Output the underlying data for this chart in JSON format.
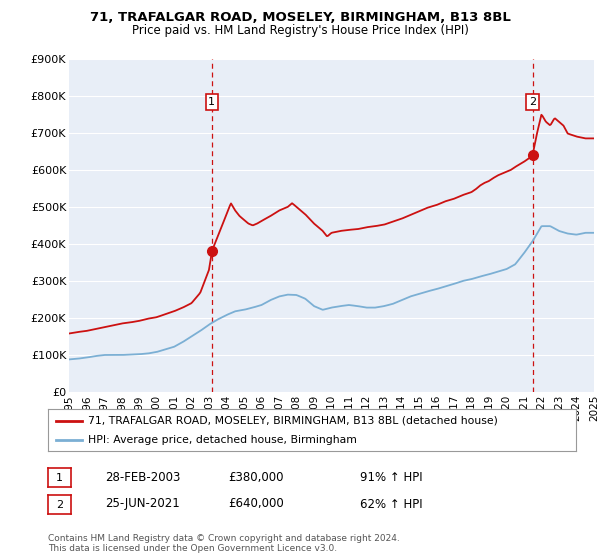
{
  "title": "71, TRAFALGAR ROAD, MOSELEY, BIRMINGHAM, B13 8BL",
  "subtitle": "Price paid vs. HM Land Registry's House Price Index (HPI)",
  "hpi_label": "HPI: Average price, detached house, Birmingham",
  "property_label": "71, TRAFALGAR ROAD, MOSELEY, BIRMINGHAM, B13 8BL (detached house)",
  "annotation1": {
    "number": "1",
    "date": "28-FEB-2003",
    "price": "£380,000",
    "hpi": "91% ↑ HPI",
    "x_year": 2003.16,
    "y_price": 380000
  },
  "annotation2": {
    "number": "2",
    "date": "25-JUN-2021",
    "price": "£640,000",
    "hpi": "62% ↑ HPI",
    "x_year": 2021.49,
    "y_price": 640000
  },
  "ymin": 0,
  "ymax": 900000,
  "yticks": [
    0,
    100000,
    200000,
    300000,
    400000,
    500000,
    600000,
    700000,
    800000,
    900000
  ],
  "ytick_labels": [
    "£0",
    "£100K",
    "£200K",
    "£300K",
    "£400K",
    "£500K",
    "£600K",
    "£700K",
    "£800K",
    "£900K"
  ],
  "xmin": 1995,
  "xmax": 2025,
  "background_color": "#ffffff",
  "plot_bg_color": "#e8eef7",
  "grid_color": "#ffffff",
  "hpi_color": "#7bafd4",
  "property_color": "#cc1111",
  "dashed_color": "#cc1111",
  "footer": "Contains HM Land Registry data © Crown copyright and database right 2024.\nThis data is licensed under the Open Government Licence v3.0.",
  "hpi_points": [
    [
      1995.0,
      88000
    ],
    [
      1995.5,
      90000
    ],
    [
      1996.0,
      93000
    ],
    [
      1996.5,
      97000
    ],
    [
      1997.0,
      100000
    ],
    [
      1997.5,
      100000
    ],
    [
      1998.0,
      100000
    ],
    [
      1998.5,
      101000
    ],
    [
      1999.0,
      102000
    ],
    [
      1999.5,
      104000
    ],
    [
      2000.0,
      108000
    ],
    [
      2000.5,
      115000
    ],
    [
      2001.0,
      122000
    ],
    [
      2001.5,
      135000
    ],
    [
      2002.0,
      150000
    ],
    [
      2002.5,
      165000
    ],
    [
      2003.0,
      182000
    ],
    [
      2003.5,
      196000
    ],
    [
      2004.0,
      208000
    ],
    [
      2004.5,
      218000
    ],
    [
      2005.0,
      222000
    ],
    [
      2005.5,
      228000
    ],
    [
      2006.0,
      235000
    ],
    [
      2006.5,
      248000
    ],
    [
      2007.0,
      258000
    ],
    [
      2007.5,
      263000
    ],
    [
      2008.0,
      262000
    ],
    [
      2008.5,
      252000
    ],
    [
      2009.0,
      232000
    ],
    [
      2009.5,
      222000
    ],
    [
      2010.0,
      228000
    ],
    [
      2010.5,
      232000
    ],
    [
      2011.0,
      235000
    ],
    [
      2011.5,
      232000
    ],
    [
      2012.0,
      228000
    ],
    [
      2012.5,
      228000
    ],
    [
      2013.0,
      232000
    ],
    [
      2013.5,
      238000
    ],
    [
      2014.0,
      248000
    ],
    [
      2014.5,
      258000
    ],
    [
      2015.0,
      265000
    ],
    [
      2015.5,
      272000
    ],
    [
      2016.0,
      278000
    ],
    [
      2016.5,
      285000
    ],
    [
      2017.0,
      292000
    ],
    [
      2017.5,
      300000
    ],
    [
      2018.0,
      305000
    ],
    [
      2018.5,
      312000
    ],
    [
      2019.0,
      318000
    ],
    [
      2019.5,
      325000
    ],
    [
      2020.0,
      332000
    ],
    [
      2020.5,
      345000
    ],
    [
      2021.0,
      375000
    ],
    [
      2021.5,
      408000
    ],
    [
      2022.0,
      448000
    ],
    [
      2022.5,
      448000
    ],
    [
      2023.0,
      435000
    ],
    [
      2023.5,
      428000
    ],
    [
      2024.0,
      425000
    ],
    [
      2024.5,
      430000
    ],
    [
      2025.0,
      430000
    ]
  ],
  "prop_points": [
    [
      1995.0,
      158000
    ],
    [
      1995.5,
      162000
    ],
    [
      1996.0,
      165000
    ],
    [
      1996.5,
      170000
    ],
    [
      1997.0,
      175000
    ],
    [
      1997.5,
      180000
    ],
    [
      1998.0,
      185000
    ],
    [
      1998.5,
      188000
    ],
    [
      1999.0,
      192000
    ],
    [
      1999.5,
      198000
    ],
    [
      2000.0,
      202000
    ],
    [
      2000.5,
      210000
    ],
    [
      2001.0,
      218000
    ],
    [
      2001.5,
      228000
    ],
    [
      2002.0,
      240000
    ],
    [
      2002.5,
      268000
    ],
    [
      2003.0,
      330000
    ],
    [
      2003.16,
      380000
    ],
    [
      2003.5,
      420000
    ],
    [
      2003.75,
      450000
    ],
    [
      2004.0,
      480000
    ],
    [
      2004.25,
      510000
    ],
    [
      2004.5,
      490000
    ],
    [
      2004.75,
      475000
    ],
    [
      2005.0,
      465000
    ],
    [
      2005.25,
      455000
    ],
    [
      2005.5,
      450000
    ],
    [
      2005.75,
      455000
    ],
    [
      2006.0,
      462000
    ],
    [
      2006.5,
      475000
    ],
    [
      2007.0,
      490000
    ],
    [
      2007.5,
      500000
    ],
    [
      2007.75,
      510000
    ],
    [
      2008.0,
      500000
    ],
    [
      2008.5,
      480000
    ],
    [
      2009.0,
      455000
    ],
    [
      2009.5,
      435000
    ],
    [
      2009.75,
      420000
    ],
    [
      2010.0,
      430000
    ],
    [
      2010.5,
      435000
    ],
    [
      2011.0,
      438000
    ],
    [
      2011.5,
      440000
    ],
    [
      2012.0,
      445000
    ],
    [
      2012.5,
      448000
    ],
    [
      2013.0,
      452000
    ],
    [
      2013.5,
      460000
    ],
    [
      2014.0,
      468000
    ],
    [
      2014.5,
      478000
    ],
    [
      2015.0,
      488000
    ],
    [
      2015.5,
      498000
    ],
    [
      2016.0,
      505000
    ],
    [
      2016.5,
      515000
    ],
    [
      2017.0,
      522000
    ],
    [
      2017.5,
      532000
    ],
    [
      2018.0,
      540000
    ],
    [
      2018.25,
      548000
    ],
    [
      2018.5,
      558000
    ],
    [
      2018.75,
      565000
    ],
    [
      2019.0,
      570000
    ],
    [
      2019.25,
      578000
    ],
    [
      2019.5,
      585000
    ],
    [
      2019.75,
      590000
    ],
    [
      2020.0,
      595000
    ],
    [
      2020.25,
      600000
    ],
    [
      2020.5,
      608000
    ],
    [
      2020.75,
      615000
    ],
    [
      2021.0,
      622000
    ],
    [
      2021.25,
      630000
    ],
    [
      2021.49,
      640000
    ],
    [
      2021.75,
      700000
    ],
    [
      2022.0,
      750000
    ],
    [
      2022.25,
      730000
    ],
    [
      2022.5,
      720000
    ],
    [
      2022.75,
      740000
    ],
    [
      2023.0,
      730000
    ],
    [
      2023.25,
      720000
    ],
    [
      2023.5,
      698000
    ],
    [
      2024.0,
      690000
    ],
    [
      2024.5,
      685000
    ],
    [
      2025.0,
      685000
    ]
  ]
}
